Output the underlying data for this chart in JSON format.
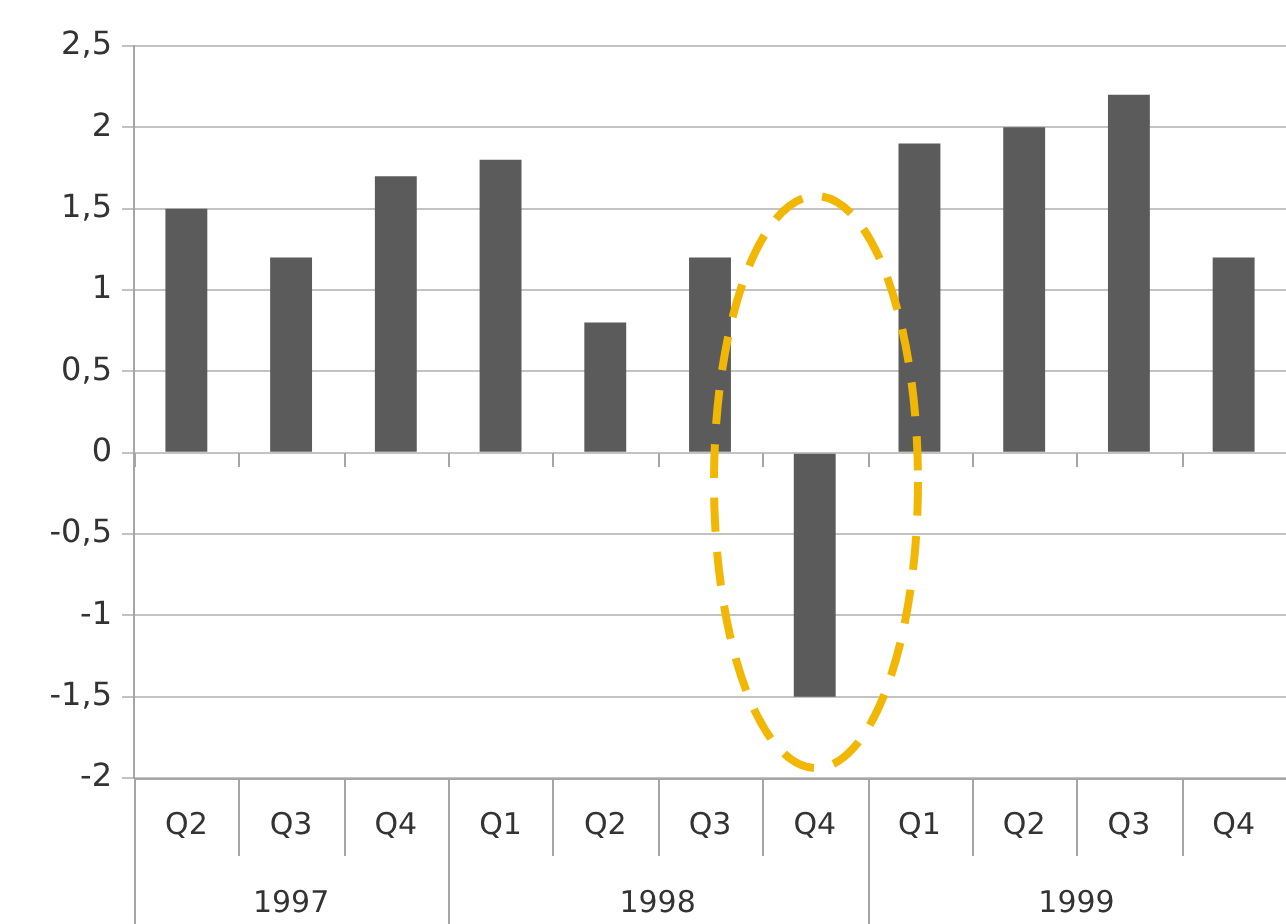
{
  "chart_data": {
    "type": "bar",
    "categories": [
      "Q2",
      "Q3",
      "Q4",
      "Q1",
      "Q2",
      "Q3",
      "Q4",
      "Q1",
      "Q2",
      "Q3",
      "Q4"
    ],
    "values": [
      1.5,
      1.2,
      1.7,
      1.8,
      0.8,
      1.2,
      -1.5,
      1.9,
      2.0,
      2.2,
      1.2
    ],
    "color": "#5b5b5b",
    "ylim": [
      -2,
      2.5
    ],
    "yticks": [
      -2,
      {
        "value": -1.5,
        "label": "-1,5"
      },
      -1,
      {
        "value": -0.5,
        "label": "-0,5"
      },
      0,
      {
        "value": 0.5,
        "label": "0,5"
      },
      1,
      {
        "value": 1.5,
        "label": "1,5"
      },
      2,
      {
        "value": 2.5,
        "label": "2,5"
      }
    ],
    "grid": "y",
    "legend": false,
    "annotations": [
      "1997",
      "1998",
      "1999"
    ]
  }
}
